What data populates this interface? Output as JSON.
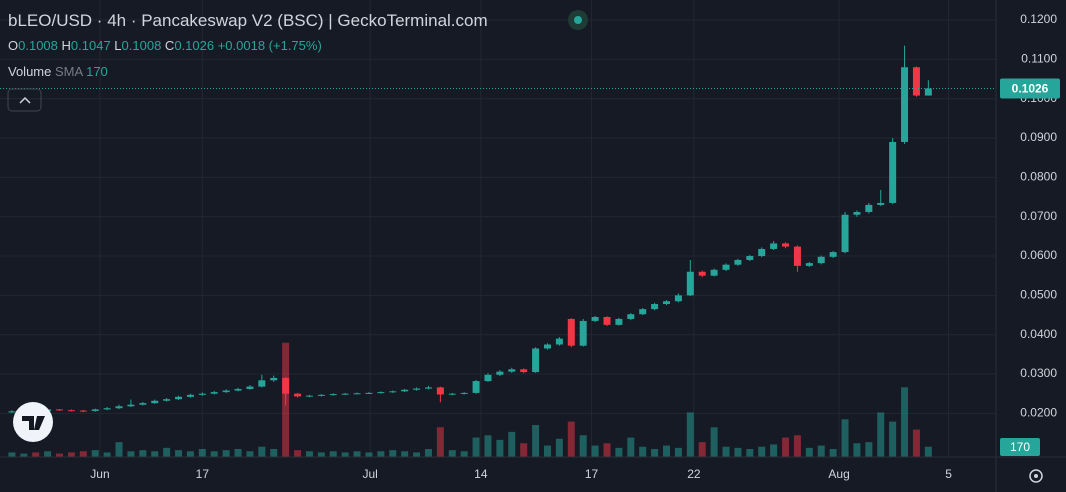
{
  "header": {
    "title": "bLEO/USD · 4h · Pancakeswap V2 (BSC) | GeckoTerminal.com",
    "o": "O",
    "h": "H",
    "l": "L",
    "c": "C",
    "change": "+0.0018 (+1.75%)",
    "volume": "Volume",
    "sma": "SMA",
    "sma_value": "170"
  },
  "chart_data": {
    "type": "candlestick",
    "up_color": "#26a69a",
    "down_color": "#f23645",
    "grid": true,
    "open": [
      0.0203,
      0.0205,
      0.0208,
      0.0206,
      0.021,
      0.0208,
      0.0207,
      0.0206,
      0.021,
      0.0213,
      0.0218,
      0.0222,
      0.0226,
      0.0232,
      0.0236,
      0.0242,
      0.0247,
      0.025,
      0.0254,
      0.0258,
      0.0262,
      0.0268,
      0.0284,
      0.029,
      0.025,
      0.0243,
      0.0245,
      0.0247,
      0.0249,
      0.025,
      0.0251,
      0.0252,
      0.0254,
      0.0256,
      0.026,
      0.0263,
      0.0266,
      0.0248,
      0.025,
      0.0252,
      0.0282,
      0.0298,
      0.0306,
      0.0312,
      0.0305,
      0.0365,
      0.0375,
      0.044,
      0.0372,
      0.0435,
      0.0445,
      0.0425,
      0.044,
      0.0452,
      0.0465,
      0.0478,
      0.0485,
      0.05,
      0.056,
      0.055,
      0.0565,
      0.0578,
      0.059,
      0.06,
      0.0618,
      0.0632,
      0.0624,
      0.0575,
      0.0582,
      0.0598,
      0.061,
      0.0705,
      0.0712,
      0.073,
      0.0735,
      0.089,
      0.108,
      0.1008
    ],
    "high": [
      0.0208,
      0.021,
      0.021,
      0.0212,
      0.0211,
      0.021,
      0.0209,
      0.0212,
      0.0216,
      0.0222,
      0.0235,
      0.0229,
      0.0235,
      0.0239,
      0.0245,
      0.025,
      0.0253,
      0.0257,
      0.0261,
      0.0265,
      0.0272,
      0.0298,
      0.0296,
      0.0292,
      0.0252,
      0.0247,
      0.0249,
      0.0251,
      0.0252,
      0.0253,
      0.0254,
      0.0256,
      0.0258,
      0.0262,
      0.0266,
      0.027,
      0.0268,
      0.0252,
      0.0254,
      0.0285,
      0.0302,
      0.031,
      0.0316,
      0.0314,
      0.0368,
      0.0378,
      0.0394,
      0.0442,
      0.044,
      0.0448,
      0.0447,
      0.0443,
      0.0455,
      0.0468,
      0.0481,
      0.0488,
      0.0505,
      0.059,
      0.0563,
      0.0568,
      0.0581,
      0.0593,
      0.0603,
      0.0622,
      0.0638,
      0.0635,
      0.0627,
      0.0585,
      0.0601,
      0.0613,
      0.0712,
      0.0716,
      0.0735,
      0.0768,
      0.09,
      0.1135,
      0.1082,
      0.1047
    ],
    "low": [
      0.0201,
      0.0203,
      0.0204,
      0.0205,
      0.0206,
      0.0205,
      0.0203,
      0.0204,
      0.0208,
      0.0211,
      0.0216,
      0.022,
      0.0224,
      0.023,
      0.0234,
      0.024,
      0.0245,
      0.0248,
      0.0252,
      0.0256,
      0.026,
      0.0266,
      0.028,
      0.022,
      0.024,
      0.0241,
      0.0243,
      0.0245,
      0.0247,
      0.0248,
      0.0249,
      0.025,
      0.0252,
      0.0254,
      0.0258,
      0.0261,
      0.0228,
      0.0246,
      0.0248,
      0.025,
      0.028,
      0.0295,
      0.0303,
      0.0302,
      0.0303,
      0.0362,
      0.0372,
      0.0368,
      0.037,
      0.0432,
      0.0422,
      0.0423,
      0.0437,
      0.045,
      0.0462,
      0.0475,
      0.0482,
      0.0498,
      0.0546,
      0.0548,
      0.0562,
      0.0575,
      0.0587,
      0.0597,
      0.0615,
      0.062,
      0.056,
      0.0572,
      0.0579,
      0.0595,
      0.0607,
      0.07,
      0.0708,
      0.0727,
      0.0732,
      0.0885,
      0.1005,
      0.1008
    ],
    "close": [
      0.0205,
      0.0208,
      0.0206,
      0.021,
      0.0208,
      0.0207,
      0.0206,
      0.021,
      0.0213,
      0.0218,
      0.0222,
      0.0226,
      0.0232,
      0.0236,
      0.0242,
      0.0247,
      0.025,
      0.0254,
      0.0258,
      0.0262,
      0.0268,
      0.0284,
      0.029,
      0.025,
      0.0243,
      0.0245,
      0.0247,
      0.0249,
      0.025,
      0.0251,
      0.0252,
      0.0254,
      0.0256,
      0.026,
      0.0263,
      0.0266,
      0.0248,
      0.025,
      0.0252,
      0.0282,
      0.0298,
      0.0306,
      0.0312,
      0.0305,
      0.0365,
      0.0375,
      0.039,
      0.0372,
      0.0435,
      0.0445,
      0.0425,
      0.044,
      0.0452,
      0.0465,
      0.0478,
      0.0485,
      0.05,
      0.056,
      0.055,
      0.0565,
      0.0578,
      0.059,
      0.06,
      0.0618,
      0.0632,
      0.0624,
      0.0575,
      0.0582,
      0.0598,
      0.061,
      0.0705,
      0.0712,
      0.073,
      0.0735,
      0.089,
      0.108,
      0.1008,
      0.1026
    ],
    "volume": [
      4,
      3,
      4,
      5,
      3,
      4,
      5,
      6,
      4,
      13,
      5,
      6,
      5,
      8,
      6,
      5,
      7,
      5,
      6,
      7,
      5,
      9,
      7,
      100,
      6,
      5,
      4,
      5,
      4,
      5,
      4,
      5,
      6,
      5,
      4,
      7,
      26,
      6,
      5,
      17,
      19,
      15,
      22,
      12,
      28,
      10,
      16,
      31,
      19,
      10,
      12,
      8,
      17,
      9,
      7,
      10,
      8,
      39,
      13,
      26,
      9,
      8,
      7,
      9,
      11,
      17,
      19,
      8,
      10,
      7,
      33,
      12,
      13,
      39,
      31,
      61,
      24,
      9
    ],
    "volume_lim": [
      0,
      400
    ],
    "volume_badge": "170",
    "xlim": [
      -1,
      82.6
    ],
    "xticks": [
      {
        "value": 7.4,
        "label": "Jun"
      },
      {
        "value": 16,
        "label": "17"
      },
      {
        "value": 30.1,
        "label": "Jul"
      },
      {
        "value": 39.4,
        "label": "14"
      },
      {
        "value": 48.7,
        "label": "17"
      },
      {
        "value": 57.3,
        "label": "22"
      },
      {
        "value": 69.5,
        "label": "Aug"
      },
      {
        "value": 78.7,
        "label": "5"
      }
    ],
    "ylim": [
      0.0089,
      0.1251
    ],
    "yticks": [
      {
        "value": 0.02,
        "label": "0.0200"
      },
      {
        "value": 0.03,
        "label": "0.0300"
      },
      {
        "value": 0.04,
        "label": "0.0400"
      },
      {
        "value": 0.05,
        "label": "0.0500"
      },
      {
        "value": 0.06,
        "label": "0.0600"
      },
      {
        "value": 0.07,
        "label": "0.0700"
      },
      {
        "value": 0.08,
        "label": "0.0800"
      },
      {
        "value": 0.09,
        "label": "0.0900"
      },
      {
        "value": 0.1,
        "label": "0.1000"
      },
      {
        "value": 0.11,
        "label": "0.1100"
      },
      {
        "value": 0.12,
        "label": "0.1200"
      }
    ]
  }
}
